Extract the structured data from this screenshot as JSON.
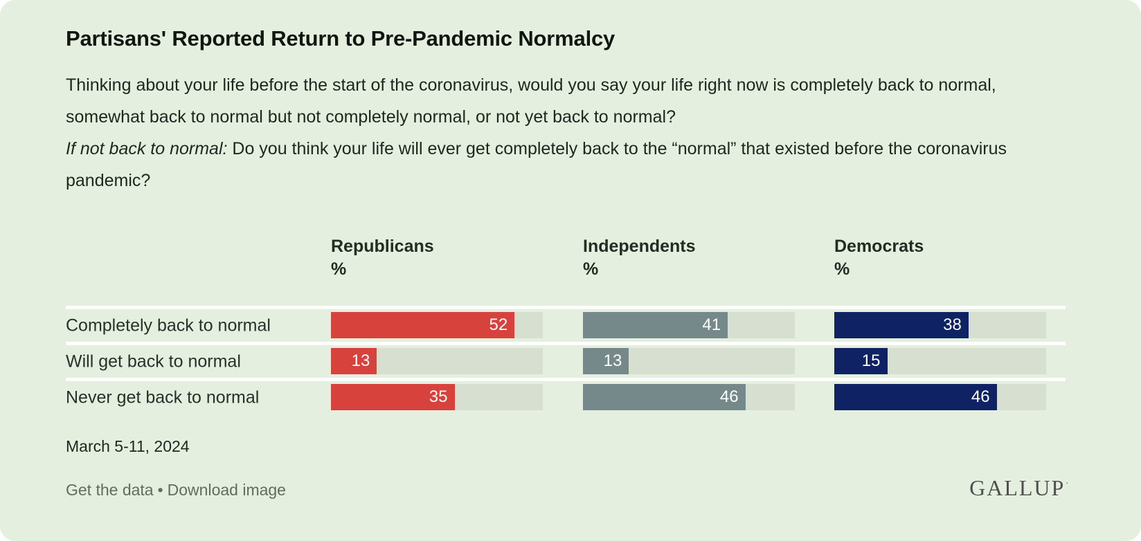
{
  "title": "Partisans' Reported Return to Pre-Pandemic Normalcy",
  "question_1": "Thinking about your life before the start of the coronavirus, would you say your life right now is completely back to normal, somewhat back to normal but not completely normal, or not yet back to normal?",
  "question_2_lead": "If not back to normal:",
  "question_2_rest": " Do you think your life will ever get completely back to the “normal” that existed before the coronavirus pandemic?",
  "date_note": "March 5-11, 2024",
  "footer": {
    "get_data_label": "Get the data",
    "separator": "•",
    "download_label": "Download image"
  },
  "brand": "GALLUP",
  "brand_mark": "’",
  "chart_data": {
    "type": "bar",
    "orientation": "horizontal",
    "value_unit": "%",
    "xmax": 60,
    "categories": [
      "Completely back to normal",
      "Will get back to normal",
      "Never get back to normal"
    ],
    "series": [
      {
        "name": "Republicans",
        "unit_label": "%",
        "color": "#d8423c",
        "values": [
          52,
          13,
          35
        ]
      },
      {
        "name": "Independents",
        "unit_label": "%",
        "color": "#75898a",
        "values": [
          41,
          13,
          46
        ]
      },
      {
        "name": "Democrats",
        "unit_label": "%",
        "color": "#0f2264",
        "values": [
          38,
          15,
          46
        ]
      }
    ],
    "colors": {
      "background": "#e5efdf",
      "track": "#d7dfd0",
      "row_rule": "#ffffff",
      "value_label": "#ffffff"
    },
    "legend_position": "column-headers",
    "grid": false
  }
}
